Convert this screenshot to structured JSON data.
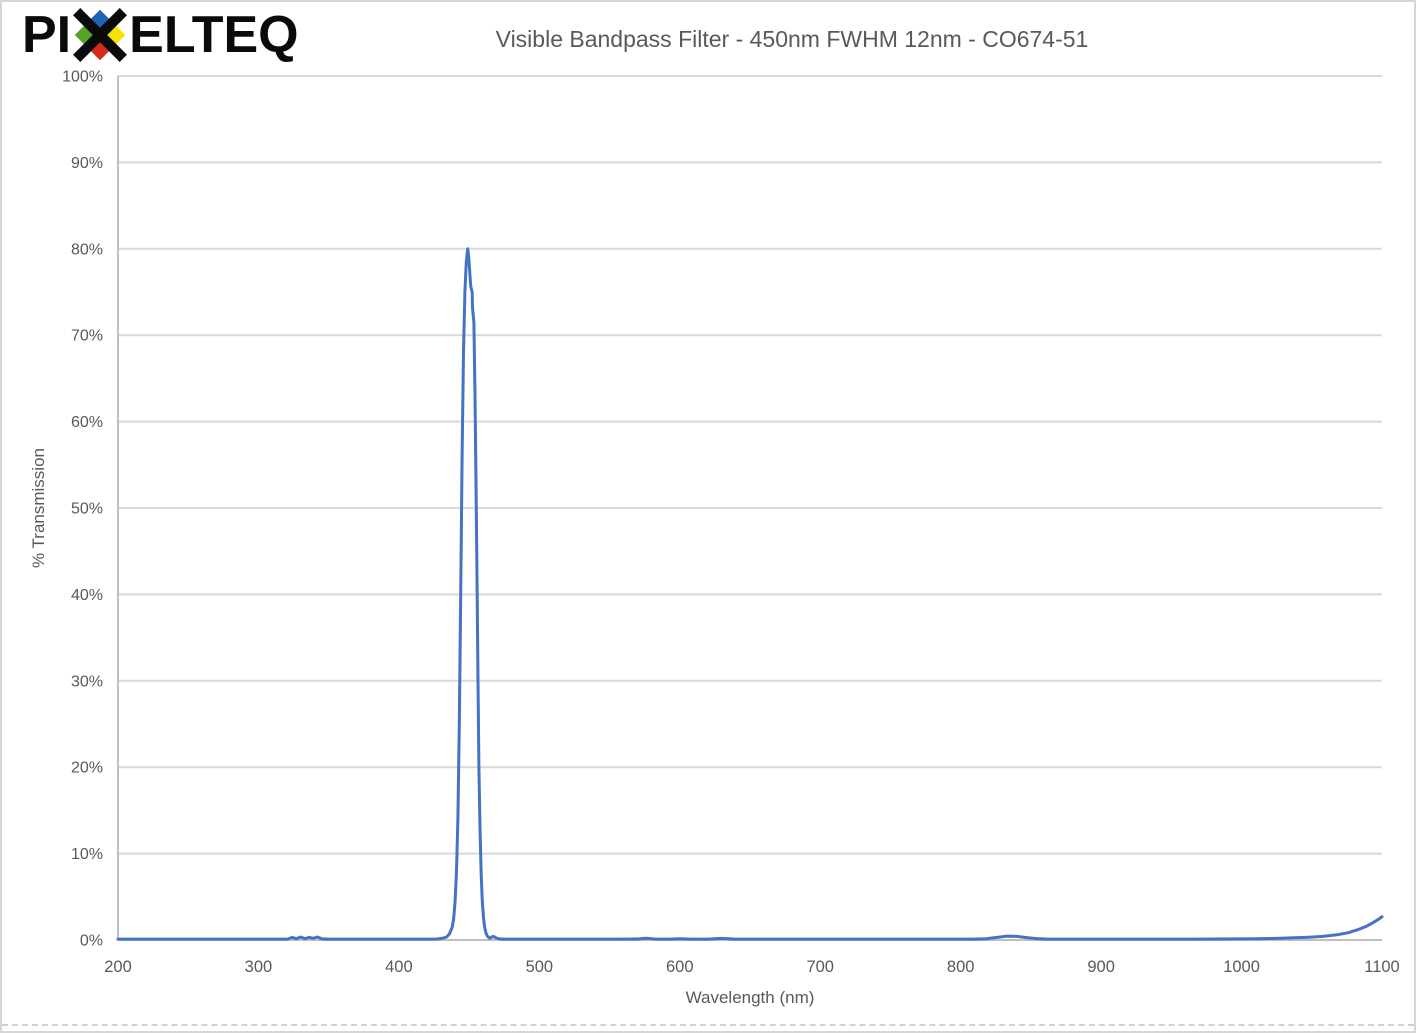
{
  "header": {
    "logo": {
      "text_left": "PI",
      "text_right": "ELTEQ",
      "black": "#0a0a0a",
      "x_icon_colors": {
        "top": "#2062b4",
        "left": "#55a428",
        "right": "#f4e300",
        "bottom": "#d92b1c"
      }
    }
  },
  "chart_data": {
    "type": "line",
    "title": "Visible Bandpass Filter - 450nm FWHM 12nm - CO674-51",
    "xlabel": "Wavelength (nm)",
    "ylabel": "% Transmission",
    "xlim": [
      200,
      1100
    ],
    "ylim": [
      0,
      100
    ],
    "x_ticks": [
      200,
      300,
      400,
      500,
      600,
      700,
      800,
      900,
      1000,
      1100
    ],
    "y_ticks": [
      0,
      10,
      20,
      30,
      40,
      50,
      60,
      70,
      80,
      90,
      100
    ],
    "y_tick_labels": [
      "0%",
      "10%",
      "20%",
      "30%",
      "40%",
      "50%",
      "60%",
      "70%",
      "80%",
      "90%",
      "100%"
    ],
    "grid": "horizontal",
    "legend": "none",
    "line_color": "#4472C4",
    "gridline_color": "#d9d9d9",
    "axis_color": "#bfbfbf",
    "text_color": "#595959",
    "series": [
      {
        "name": "% Transmission",
        "points": [
          [
            200,
            0.1
          ],
          [
            215,
            0.1
          ],
          [
            230,
            0.1
          ],
          [
            245,
            0.1
          ],
          [
            260,
            0.1
          ],
          [
            275,
            0.1
          ],
          [
            290,
            0.1
          ],
          [
            305,
            0.1
          ],
          [
            315,
            0.1
          ],
          [
            321,
            0.12
          ],
          [
            324,
            0.3
          ],
          [
            327,
            0.15
          ],
          [
            330,
            0.35
          ],
          [
            333,
            0.15
          ],
          [
            336,
            0.3
          ],
          [
            339,
            0.2
          ],
          [
            342,
            0.35
          ],
          [
            345,
            0.15
          ],
          [
            349,
            0.1
          ],
          [
            355,
            0.1
          ],
          [
            365,
            0.1
          ],
          [
            380,
            0.1
          ],
          [
            395,
            0.1
          ],
          [
            410,
            0.1
          ],
          [
            420,
            0.1
          ],
          [
            427,
            0.12
          ],
          [
            431,
            0.2
          ],
          [
            434,
            0.35
          ],
          [
            436,
            0.7
          ],
          [
            438,
            1.5
          ],
          [
            439,
            2.5
          ],
          [
            440,
            4.5
          ],
          [
            441,
            8
          ],
          [
            442,
            14
          ],
          [
            443,
            25
          ],
          [
            444,
            40
          ],
          [
            445,
            56
          ],
          [
            446,
            68
          ],
          [
            447,
            75
          ],
          [
            448,
            78.5
          ],
          [
            449,
            80
          ],
          [
            449.6,
            79.3
          ],
          [
            450.2,
            78
          ],
          [
            450.8,
            76.5
          ],
          [
            451.2,
            75.6
          ],
          [
            452.2,
            75.0
          ],
          [
            452.4,
            73.2
          ],
          [
            453.4,
            71.5
          ],
          [
            454.2,
            63
          ],
          [
            454.9,
            53
          ],
          [
            455.6,
            42
          ],
          [
            456.3,
            30
          ],
          [
            457,
            20
          ],
          [
            457.8,
            12.5
          ],
          [
            458.6,
            7.5
          ],
          [
            459.4,
            4.5
          ],
          [
            460.2,
            2.7
          ],
          [
            461,
            1.5
          ],
          [
            462,
            0.8
          ],
          [
            463,
            0.45
          ],
          [
            464,
            0.28
          ],
          [
            465,
            0.2
          ],
          [
            466,
            0.35
          ],
          [
            467.5,
            0.4
          ],
          [
            469,
            0.25
          ],
          [
            471,
            0.15
          ],
          [
            474,
            0.1
          ],
          [
            480,
            0.1
          ],
          [
            495,
            0.1
          ],
          [
            510,
            0.1
          ],
          [
            525,
            0.1
          ],
          [
            540,
            0.1
          ],
          [
            555,
            0.1
          ],
          [
            570,
            0.12
          ],
          [
            576,
            0.2
          ],
          [
            582,
            0.12
          ],
          [
            592,
            0.1
          ],
          [
            600,
            0.14
          ],
          [
            608,
            0.1
          ],
          [
            620,
            0.1
          ],
          [
            630,
            0.18
          ],
          [
            638,
            0.12
          ],
          [
            648,
            0.1
          ],
          [
            660,
            0.1
          ],
          [
            675,
            0.1
          ],
          [
            690,
            0.1
          ],
          [
            705,
            0.1
          ],
          [
            720,
            0.1
          ],
          [
            735,
            0.1
          ],
          [
            750,
            0.1
          ],
          [
            765,
            0.1
          ],
          [
            780,
            0.1
          ],
          [
            795,
            0.1
          ],
          [
            808,
            0.1
          ],
          [
            818,
            0.15
          ],
          [
            826,
            0.3
          ],
          [
            833,
            0.45
          ],
          [
            840,
            0.42
          ],
          [
            847,
            0.28
          ],
          [
            854,
            0.16
          ],
          [
            862,
            0.1
          ],
          [
            875,
            0.1
          ],
          [
            890,
            0.1
          ],
          [
            905,
            0.1
          ],
          [
            920,
            0.1
          ],
          [
            935,
            0.1
          ],
          [
            950,
            0.1
          ],
          [
            965,
            0.1
          ],
          [
            980,
            0.12
          ],
          [
            995,
            0.13
          ],
          [
            1010,
            0.15
          ],
          [
            1025,
            0.18
          ],
          [
            1038,
            0.25
          ],
          [
            1048,
            0.32
          ],
          [
            1058,
            0.42
          ],
          [
            1068,
            0.6
          ],
          [
            1076,
            0.85
          ],
          [
            1083,
            1.2
          ],
          [
            1089,
            1.6
          ],
          [
            1094,
            2.05
          ],
          [
            1098,
            2.45
          ],
          [
            1100,
            2.7
          ]
        ]
      }
    ]
  }
}
